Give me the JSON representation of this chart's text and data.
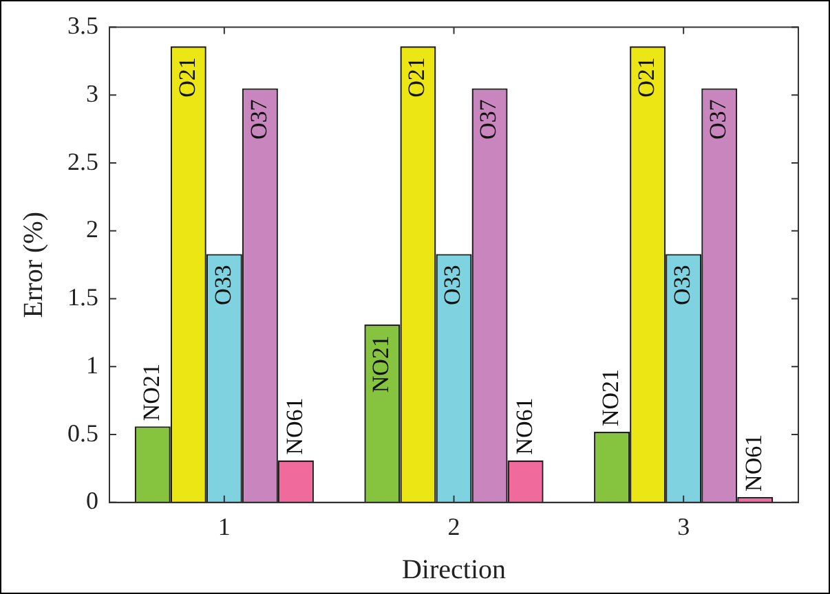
{
  "chart_data": {
    "type": "bar",
    "xlabel": "Direction",
    "ylabel": "Error (%)",
    "categories": [
      "1",
      "2",
      "3"
    ],
    "series": [
      {
        "name": "NO21",
        "color": "#86c440",
        "values": [
          0.56,
          1.31,
          0.52
        ]
      },
      {
        "name": "O21",
        "color": "#ece614",
        "values": [
          3.36,
          3.36,
          3.36
        ]
      },
      {
        "name": "O33",
        "color": "#7fd3e0",
        "values": [
          1.83,
          1.83,
          1.83
        ]
      },
      {
        "name": "O37",
        "color": "#c985bd",
        "values": [
          3.05,
          3.05,
          3.05
        ]
      },
      {
        "name": "NO61",
        "color": "#f06a9c",
        "values": [
          0.31,
          0.31,
          0.04
        ]
      }
    ],
    "ylim": [
      0,
      3.5
    ],
    "yticks": [
      0,
      0.5,
      1,
      1.5,
      2,
      2.5,
      3,
      3.5
    ],
    "grid": false,
    "legend": false
  }
}
